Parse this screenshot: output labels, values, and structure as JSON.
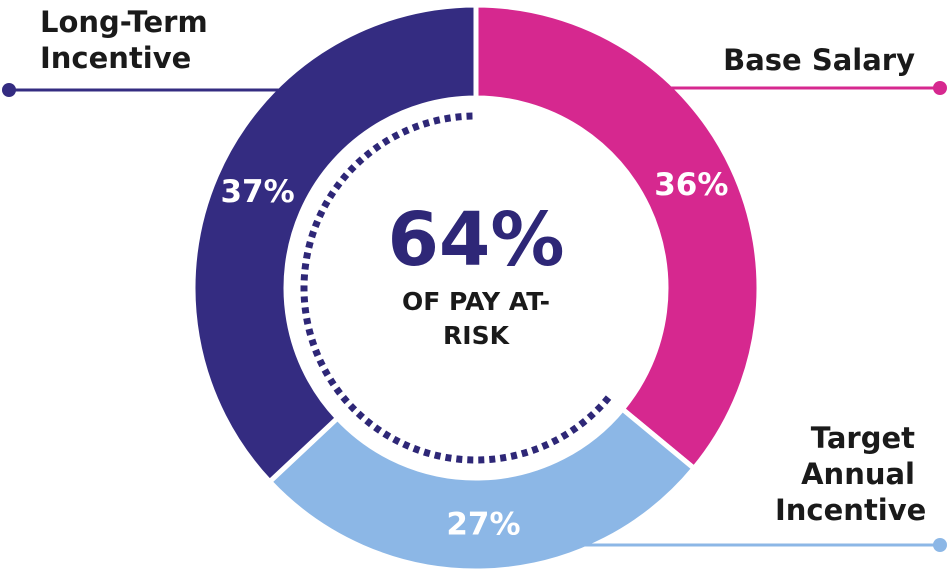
{
  "chart_data": {
    "type": "donut",
    "categories": [
      "Base Salary",
      "Target Annual Incentive",
      "Long-Term Incentive"
    ],
    "values": [
      36,
      27,
      37
    ],
    "value_labels": [
      "36%",
      "27%",
      "37%"
    ],
    "colors": [
      "#d6288f",
      "#8cb7e6",
      "#342c81"
    ],
    "center_value": "64%",
    "center_text": "OF PAY AT-RISK"
  }
}
